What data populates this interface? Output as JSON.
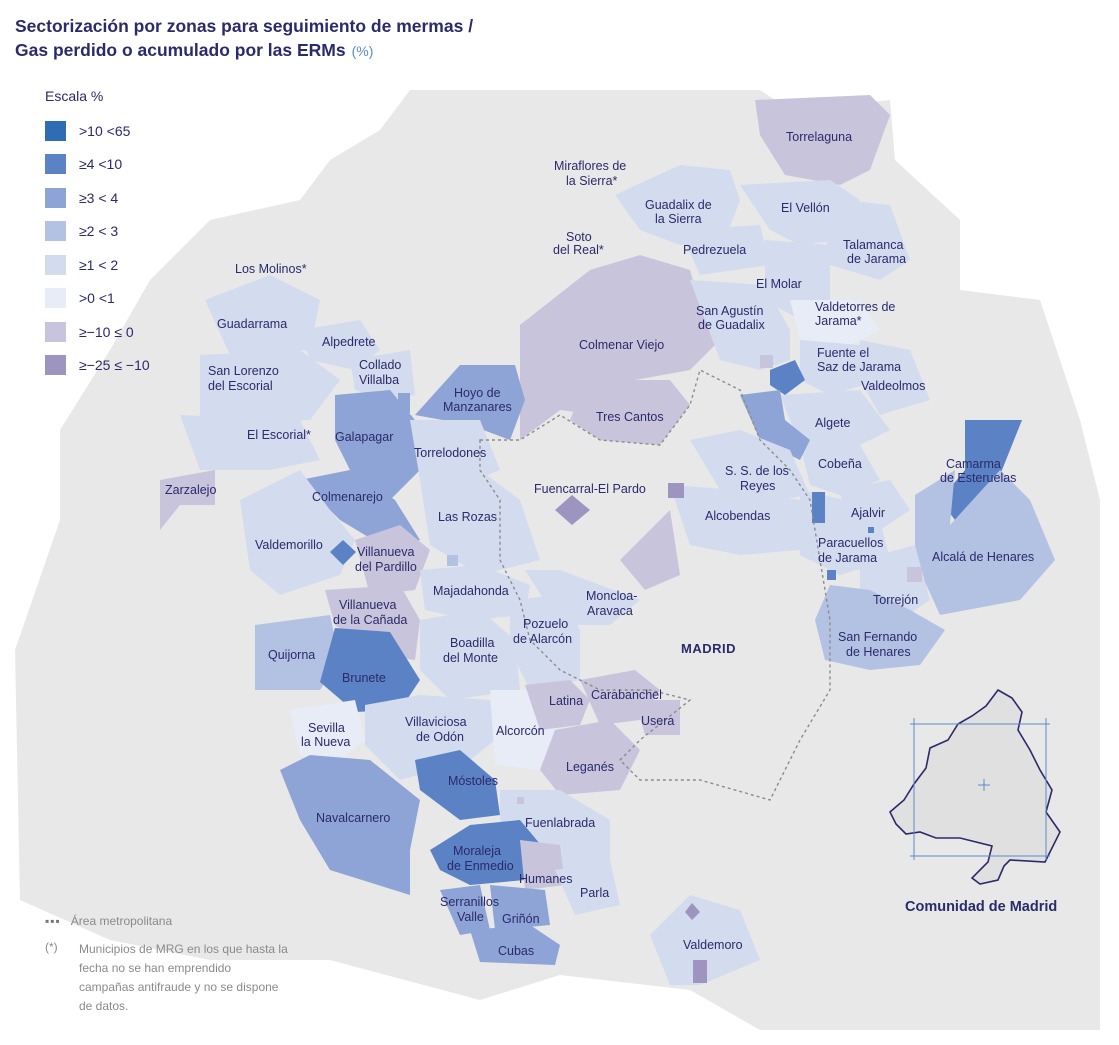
{
  "title": {
    "line1": "Sectorización por zonas para seguimiento de mermas /",
    "line2": "Gas perdido o acumulado por las ERMs",
    "unit": "(%)"
  },
  "legend": {
    "title": "Escala %",
    "items": [
      {
        "label": ">10  <65",
        "color": "#2e6db3"
      },
      {
        "label": "≥4  <10",
        "color": "#5b82c4"
      },
      {
        "label": "≥3  < 4",
        "color": "#8ea4d6"
      },
      {
        "label": "≥2  < 3",
        "color": "#b3c1e3"
      },
      {
        "label": "≥1  < 2",
        "color": "#d3dbee"
      },
      {
        "label": ">0  <1",
        "color": "#e8ecf6"
      },
      {
        "label": "≥−10  ≤ 0",
        "color": "#c8c4dc"
      },
      {
        "label": "≥−25  ≤ −10",
        "color": "#9e94c0"
      }
    ]
  },
  "colors": {
    "background_region": "#e8e8e8",
    "area_line": "#8c8c8c",
    "text": "#2b2a6b"
  },
  "capital": "MADRID",
  "municipalities": [
    {
      "name": "Torrelaguna",
      "band": "≥−10 ≤ 0"
    },
    {
      "name": "Miraflores de la Sierra*",
      "band": null
    },
    {
      "name": "Guadalix de la Sierra",
      "band": "≥1 < 2"
    },
    {
      "name": "El Vellón",
      "band": "≥1 < 2"
    },
    {
      "name": "Soto del Real*",
      "band": null
    },
    {
      "name": "Pedrezuela",
      "band": "≥1 < 2"
    },
    {
      "name": "Talamanca de Jarama",
      "band": "≥1 < 2"
    },
    {
      "name": "Los Molinos*",
      "band": null
    },
    {
      "name": "El Molar",
      "band": "≥1 < 2"
    },
    {
      "name": "Guadarrama",
      "band": "≥1 < 2"
    },
    {
      "name": "San Agustín de Guadalix",
      "band": "≥1 < 2"
    },
    {
      "name": "Valdetorres de Jarama*",
      "band": null
    },
    {
      "name": "Alpedrete",
      "band": "≥1 < 2"
    },
    {
      "name": "Colmenar Viejo",
      "band": "≥−10 ≤ 0"
    },
    {
      "name": "Collado Villalba",
      "band": "≥1 < 2"
    },
    {
      "name": "San Lorenzo del Escorial",
      "band": "≥1 < 2"
    },
    {
      "name": "Fuente el Saz de Jarama",
      "band": "≥1 < 2"
    },
    {
      "name": "Valdeolmos",
      "band": "≥1 < 2"
    },
    {
      "name": "Hoyo de Manzanares",
      "band": "≥3 < 4"
    },
    {
      "name": "Tres Cantos",
      "band": "≥−10 ≤ 0"
    },
    {
      "name": "Algete",
      "band": "≥1 < 2"
    },
    {
      "name": "El Escorial*",
      "band": null
    },
    {
      "name": "Galapagar",
      "band": "≥3 < 4"
    },
    {
      "name": "Torrelodones",
      "band": "≥1 < 2"
    },
    {
      "name": "Camarma de Esteruelas",
      "band": "≥4 <10"
    },
    {
      "name": "Cobeña",
      "band": "≥1 < 2"
    },
    {
      "name": "S. S. de los Reyes",
      "band": "≥1 < 2"
    },
    {
      "name": "Zarzalejo",
      "band": "≥−10 ≤ 0"
    },
    {
      "name": "Fuencarral-El Pardo",
      "band": "≥−25 ≤ −10"
    },
    {
      "name": "Colmenarejo",
      "band": "≥3 < 4"
    },
    {
      "name": "Ajalvir",
      "band": "≥1 < 2"
    },
    {
      "name": "Las Rozas",
      "band": "≥1 < 2"
    },
    {
      "name": "Alcobendas",
      "band": "≥1 < 2"
    },
    {
      "name": "Valdemorillo",
      "band": "≥1 < 2"
    },
    {
      "name": "Villanueva del Pardillo",
      "band": "≥−10 ≤ 0"
    },
    {
      "name": "Paracuellos de Jarama",
      "band": "≥1 < 2"
    },
    {
      "name": "Alcalá de Henares",
      "band": "≥2 < 3"
    },
    {
      "name": "Majadahonda",
      "band": "≥1 < 2"
    },
    {
      "name": "Moncloa-Aravaca",
      "band": "≥1 < 2"
    },
    {
      "name": "Torrejón",
      "band": "≥1 < 2"
    },
    {
      "name": "Villanueva de la Cañada",
      "band": "≥−10 ≤ 0"
    },
    {
      "name": "Pozuelo de Alarcón",
      "band": "≥1 < 2"
    },
    {
      "name": "Boadilla del Monte",
      "band": "≥1 < 2"
    },
    {
      "name": "Quijorna",
      "band": "≥2 < 3"
    },
    {
      "name": "San Fernando de Henares",
      "band": "≥2 < 3"
    },
    {
      "name": "Brunete",
      "band": "≥4 <10"
    },
    {
      "name": "Carabanchel",
      "band": "≥−10 ≤ 0"
    },
    {
      "name": "Latina",
      "band": "≥−10 ≤ 0"
    },
    {
      "name": "Usera",
      "band": "≥−10 ≤ 0"
    },
    {
      "name": "Sevilla la Nueva",
      "band": "≥1 < 2"
    },
    {
      "name": "Alcorcón",
      "band": ">0 <1"
    },
    {
      "name": "Villaviciosa de Odón",
      "band": "≥1 < 2"
    },
    {
      "name": "Leganés",
      "band": "≥−10 ≤ 0"
    },
    {
      "name": "Móstoles",
      "band": "≥4 <10"
    },
    {
      "name": "Navalcarnero",
      "band": "≥3 < 4"
    },
    {
      "name": "Fuenlabrada",
      "band": "≥1 < 2"
    },
    {
      "name": "Moraleja de Enmedio",
      "band": "≥3 < 4"
    },
    {
      "name": "Humanes",
      "band": "≥−10 ≤ 0"
    },
    {
      "name": "Parla",
      "band": "≥1 < 2"
    },
    {
      "name": "Serranillos Valle",
      "band": "≥3 < 4"
    },
    {
      "name": "Griñón",
      "band": "≥3 < 4"
    },
    {
      "name": "Cubas",
      "band": "≥3 < 4"
    },
    {
      "name": "Valdemoro",
      "band": "≥1 < 2"
    }
  ],
  "labels": {
    "torrelaguna": "Torrelaguna",
    "miraflores_1": "Miraflores de",
    "miraflores_2": "la Sierra*",
    "guadalix_1": "Guadalix de",
    "guadalix_2": "la Sierra",
    "elvellon": "El Vellón",
    "soto_1": "Soto",
    "soto_2": "del Real*",
    "pedrezuela": "Pedrezuela",
    "talamanca_1": "Talamanca",
    "talamanca_2": "de Jarama",
    "losmolinos": "Los Molinos*",
    "elmolar": "El Molar",
    "guadarrama": "Guadarrama",
    "sanagustin_1": "San Agustín",
    "sanagustin_2": "de Guadalix",
    "valdetorres_1": "Valdetorres de",
    "valdetorres_2": "Jarama*",
    "alpedrete": "Alpedrete",
    "colmenarviejo": "Colmenar Viejo",
    "collado_1": "Collado",
    "collado_2": "Villalba",
    "sanlorenzo_1": "San Lorenzo",
    "sanlorenzo_2": "del Escorial",
    "fuentesaz_1": "Fuente el",
    "fuentesaz_2": "Saz de Jarama",
    "valdeolmos": "Valdeolmos",
    "hoyo_1": "Hoyo de",
    "hoyo_2": "Manzanares",
    "trescantos": "Tres Cantos",
    "algete": "Algete",
    "elescorial": "El Escorial*",
    "galapagar": "Galapagar",
    "torrelodones": "Torrelodones",
    "camarma_1": "Camarma",
    "camarma_2": "de Esteruelas",
    "cobena": "Cobeña",
    "ssreyes_1": "S. S. de los",
    "ssreyes_2": "Reyes",
    "zarzalejo": "Zarzalejo",
    "fuencarral": "Fuencarral-El Pardo",
    "colmenarejo": "Colmenarejo",
    "ajalvir": "Ajalvir",
    "lasrozas": "Las Rozas",
    "alcobendas": "Alcobendas",
    "valdemorillo": "Valdemorillo",
    "vpardillo_1": "Villanueva",
    "vpardillo_2": "del Pardillo",
    "paracuellos_1": "Paracuellos",
    "paracuellos_2": "de Jarama",
    "alcala": "Alcalá de Henares",
    "majadahonda": "Majadahonda",
    "moncloa_1": "Moncloa-",
    "moncloa_2": "Aravaca",
    "torrejon": "Torrejón",
    "vcanada_1": "Villanueva",
    "vcanada_2": "de la Cañada",
    "pozuelo_1": "Pozuelo",
    "pozuelo_2": "de Alarcón",
    "boadilla_1": "Boadilla",
    "boadilla_2": "del Monte",
    "quijorna": "Quijorna",
    "sanfernando_1": "San Fernando",
    "sanfernando_2": "de Henares",
    "brunete": "Brunete",
    "carabanchel": "Carabanchel",
    "latina": "Latina",
    "usera": "Usera",
    "sevilla_1": "Sevilla",
    "sevilla_2": "la Nueva",
    "alcorcon": "Alcorcón",
    "villaviciosa_1": "Villaviciosa",
    "villaviciosa_2": "de Odón",
    "leganes": "Leganés",
    "mostoles": "Móstoles",
    "navalcarnero": "Navalcarnero",
    "fuenlabrada": "Fuenlabrada",
    "moraleja_1": "Moraleja",
    "moraleja_2": "de Enmedio",
    "humanes": "Humanes",
    "parla": "Parla",
    "serranillos_1": "Serranillos",
    "serranillos_2": "Valle",
    "grinon": "Griñón",
    "cubas": "Cubas",
    "valdemoro": "Valdemoro"
  },
  "footnotes": {
    "area_label": "Área metropolitana",
    "asterisk": "(*)",
    "note": "Municipios de MRG en los que hasta la fecha no se han emprendido campañas antifraude y no se dispone de datos."
  },
  "inset": {
    "label": "Comunidad de Madrid"
  }
}
